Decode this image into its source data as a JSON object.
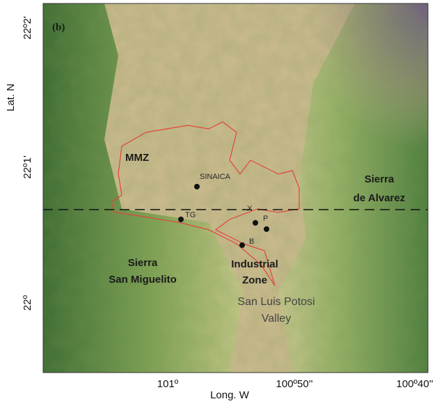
{
  "panel_label": "(b)",
  "axes": {
    "y_label": "Lat. N",
    "x_label": "Long. W",
    "y_ticks": [
      "22º2'",
      "22º1'",
      "22º"
    ],
    "x_ticks": [
      "101º",
      "100º50''",
      "100º40''"
    ]
  },
  "places": [
    {
      "lines": [
        "MMZ"
      ]
    },
    {
      "lines": [
        "Sierra",
        "de Alvarez"
      ]
    },
    {
      "lines": [
        "Sierra",
        "San Miguelito"
      ]
    },
    {
      "lines": [
        "Industrial",
        "Zone"
      ]
    },
    {
      "lines": [
        "San Luis Potosi",
        "Valley"
      ]
    }
  ],
  "stations": [
    {
      "label": "SINAICA"
    },
    {
      "label": "X"
    },
    {
      "label": "P"
    },
    {
      "label": "TG"
    },
    {
      "label": "B"
    }
  ]
}
